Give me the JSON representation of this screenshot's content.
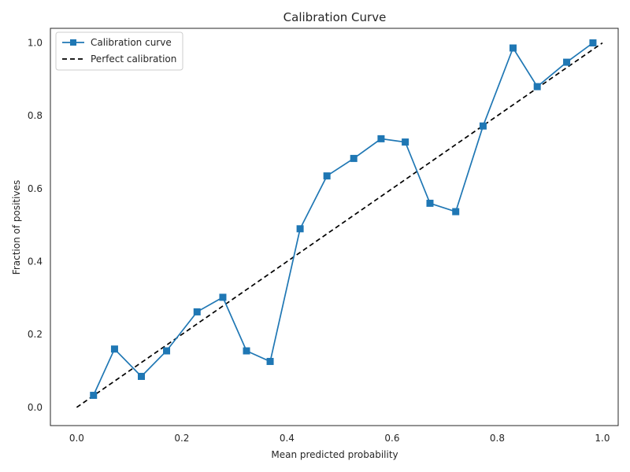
{
  "chart_data": {
    "type": "line",
    "title": "Calibration Curve",
    "xlabel": "Mean predicted probability",
    "ylabel": "Fraction of positives",
    "xlim": [
      -0.05,
      1.03
    ],
    "ylim": [
      -0.05,
      1.04
    ],
    "xticks": [
      "0.0",
      "0.2",
      "0.4",
      "0.6",
      "0.8",
      "1.0"
    ],
    "yticks": [
      "0.0",
      "0.2",
      "0.4",
      "0.6",
      "0.8",
      "1.0"
    ],
    "grid": false,
    "legend_position": "upper-left",
    "series": [
      {
        "name": "Calibration curve",
        "color": "#1f77b4",
        "marker": "square",
        "line_style": "solid",
        "x": [
          0.032,
          0.072,
          0.123,
          0.171,
          0.229,
          0.278,
          0.323,
          0.368,
          0.425,
          0.476,
          0.527,
          0.579,
          0.625,
          0.672,
          0.721,
          0.773,
          0.83,
          0.876,
          0.932,
          0.982
        ],
        "y": [
          0.033,
          0.16,
          0.085,
          0.155,
          0.262,
          0.302,
          0.155,
          0.126,
          0.49,
          0.635,
          0.683,
          0.737,
          0.728,
          0.56,
          0.537,
          0.772,
          0.986,
          0.88,
          0.947,
          1.0
        ]
      },
      {
        "name": "Perfect calibration",
        "color": "#000000",
        "marker": "none",
        "line_style": "dashed",
        "x": [
          0.0,
          1.0
        ],
        "y": [
          0.0,
          1.0
        ]
      }
    ]
  }
}
